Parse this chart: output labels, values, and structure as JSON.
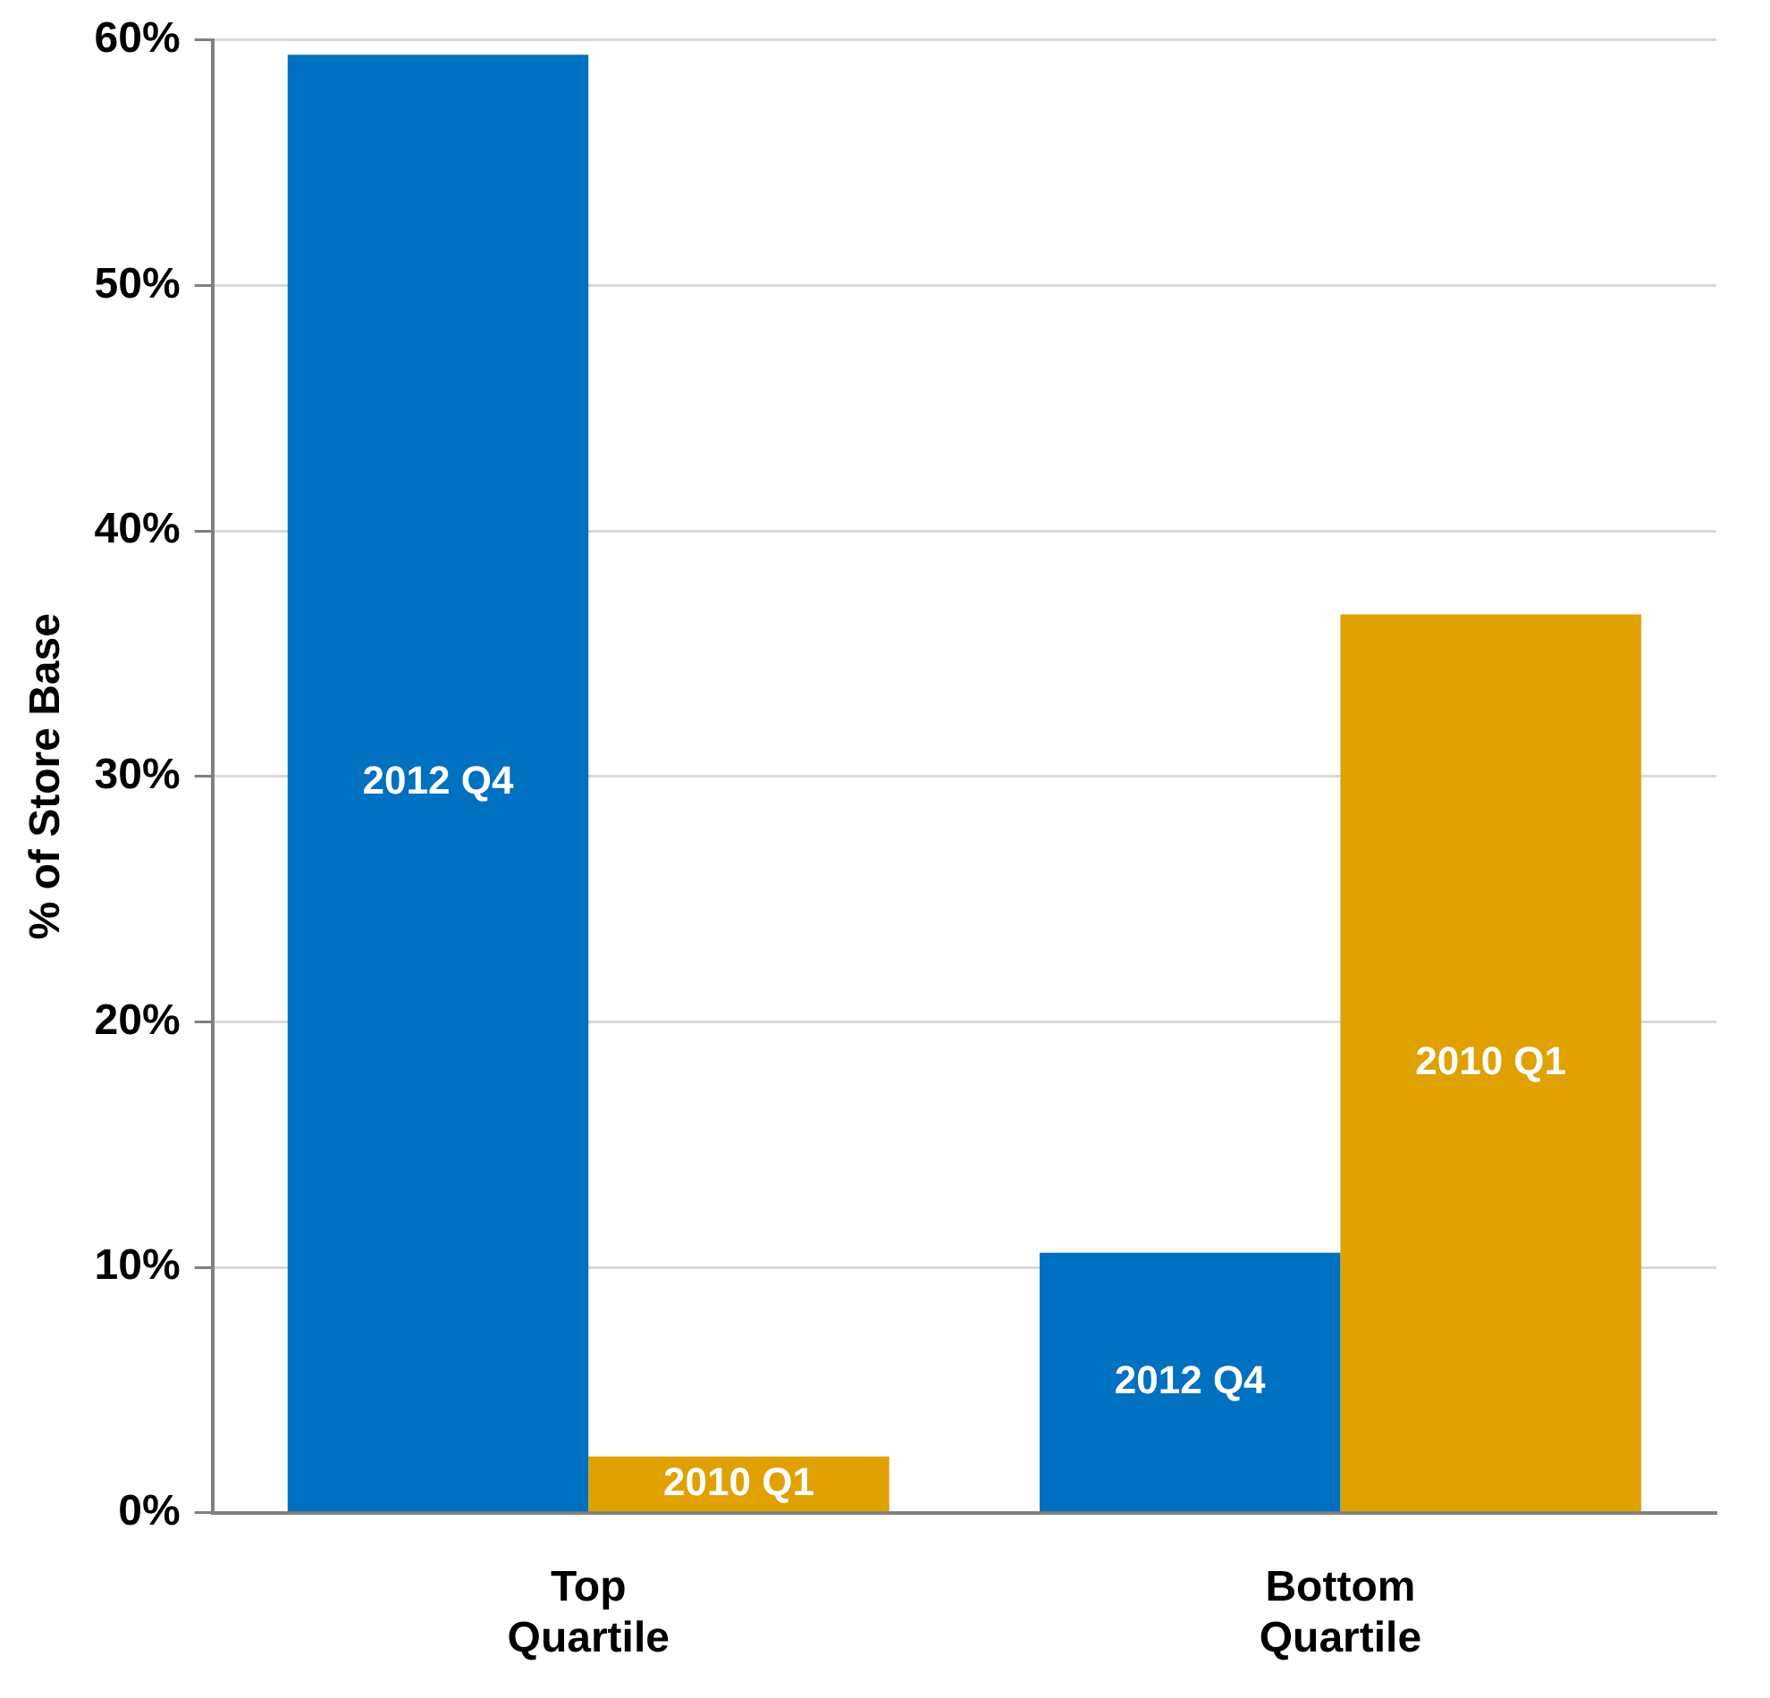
{
  "chart_data": {
    "type": "bar",
    "ylabel": "% of Store Base",
    "categories": [
      "Top Quartile",
      "Bottom Quartile"
    ],
    "series": [
      {
        "name": "2012 Q4",
        "color": "#0070c0",
        "values": [
          59.4,
          10.6
        ]
      },
      {
        "name": "2010 Q1",
        "color": "#e0a100",
        "values": [
          2.3,
          36.6
        ]
      }
    ],
    "ylim": [
      0,
      60
    ],
    "yticks": [
      {
        "value": 0,
        "label": "0%"
      },
      {
        "value": 10,
        "label": "10%"
      },
      {
        "value": 20,
        "label": "20%"
      },
      {
        "value": 30,
        "label": "30%"
      },
      {
        "value": 40,
        "label": "40%"
      },
      {
        "value": 50,
        "label": "50%"
      },
      {
        "value": 60,
        "label": "60%"
      }
    ],
    "grid": "y",
    "legend": false
  }
}
